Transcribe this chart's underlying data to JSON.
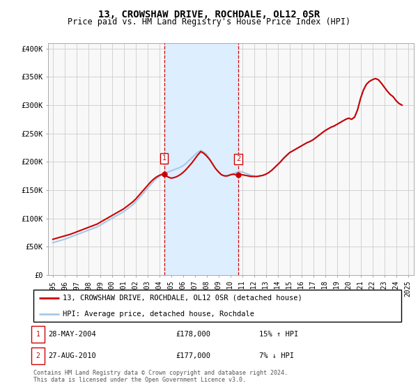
{
  "title": "13, CROWSHAW DRIVE, ROCHDALE, OL12 0SR",
  "subtitle": "Price paid vs. HM Land Registry's House Price Index (HPI)",
  "legend_line1": "13, CROWSHAW DRIVE, ROCHDALE, OL12 0SR (detached house)",
  "legend_line2": "HPI: Average price, detached house, Rochdale",
  "footnote": "Contains HM Land Registry data © Crown copyright and database right 2024.\nThis data is licensed under the Open Government Licence v3.0.",
  "transaction1_date": "28-MAY-2004",
  "transaction1_price": "£178,000",
  "transaction1_hpi": "15% ↑ HPI",
  "transaction2_date": "27-AUG-2010",
  "transaction2_price": "£177,000",
  "transaction2_hpi": "7% ↓ HPI",
  "transaction1_x": 2004.42,
  "transaction2_x": 2010.67,
  "transaction1_y": 178000,
  "transaction2_y": 177000,
  "ylim": [
    0,
    410000
  ],
  "xlim_start": 1994.6,
  "xlim_end": 2025.5,
  "yticks": [
    0,
    50000,
    100000,
    150000,
    200000,
    250000,
    300000,
    350000,
    400000
  ],
  "ytick_labels": [
    "£0",
    "£50K",
    "£100K",
    "£150K",
    "£200K",
    "£250K",
    "£300K",
    "£350K",
    "£400K"
  ],
  "xticks": [
    1995,
    1996,
    1997,
    1998,
    1999,
    2000,
    2001,
    2002,
    2003,
    2004,
    2005,
    2006,
    2007,
    2008,
    2009,
    2010,
    2011,
    2012,
    2013,
    2014,
    2015,
    2016,
    2017,
    2018,
    2019,
    2020,
    2021,
    2022,
    2023,
    2024,
    2025
  ],
  "hpi_color": "#a8c8e8",
  "price_color": "#cc0000",
  "shaded_color": "#ddeeff",
  "marker_box_color": "#cc0000",
  "grid_color": "#cccccc",
  "bg_color": "#f8f8f8",
  "hpi_data_x": [
    1995.0,
    1995.25,
    1995.5,
    1995.75,
    1996.0,
    1996.25,
    1996.5,
    1996.75,
    1997.0,
    1997.25,
    1997.5,
    1997.75,
    1998.0,
    1998.25,
    1998.5,
    1998.75,
    1999.0,
    1999.25,
    1999.5,
    1999.75,
    2000.0,
    2000.25,
    2000.5,
    2000.75,
    2001.0,
    2001.25,
    2001.5,
    2001.75,
    2002.0,
    2002.25,
    2002.5,
    2002.75,
    2003.0,
    2003.25,
    2003.5,
    2003.75,
    2004.0,
    2004.25,
    2004.5,
    2004.75,
    2005.0,
    2005.25,
    2005.5,
    2005.75,
    2006.0,
    2006.25,
    2006.5,
    2006.75,
    2007.0,
    2007.25,
    2007.5,
    2007.75,
    2008.0,
    2008.25,
    2008.5,
    2008.75,
    2009.0,
    2009.25,
    2009.5,
    2009.75,
    2010.0,
    2010.25,
    2010.5,
    2010.75,
    2011.0,
    2011.25,
    2011.5,
    2011.75,
    2012.0,
    2012.25,
    2012.5,
    2012.75,
    2013.0,
    2013.25,
    2013.5,
    2013.75,
    2014.0,
    2014.25,
    2014.5,
    2014.75,
    2015.0,
    2015.25,
    2015.5,
    2015.75,
    2016.0,
    2016.25,
    2016.5,
    2016.75,
    2017.0,
    2017.25,
    2017.5,
    2017.75,
    2018.0,
    2018.25,
    2018.5,
    2018.75,
    2019.0,
    2019.25,
    2019.5,
    2019.75,
    2020.0,
    2020.25,
    2020.5,
    2020.75,
    2021.0,
    2021.25,
    2021.5,
    2021.75,
    2022.0,
    2022.25,
    2022.5,
    2022.75,
    2023.0,
    2023.25,
    2023.5,
    2023.75,
    2024.0,
    2024.25,
    2024.5
  ],
  "hpi_data_y": [
    57000,
    58500,
    60000,
    61500,
    63000,
    65000,
    67000,
    69000,
    71000,
    73000,
    75000,
    77000,
    79000,
    81000,
    83000,
    85000,
    88000,
    91000,
    94000,
    97000,
    100000,
    103000,
    106000,
    109000,
    112000,
    116000,
    120000,
    124000,
    129000,
    135000,
    141000,
    147000,
    153000,
    159000,
    165000,
    170000,
    174000,
    177000,
    180000,
    182000,
    184000,
    186000,
    188000,
    190000,
    193000,
    197000,
    202000,
    207000,
    212000,
    217000,
    220000,
    217000,
    213000,
    205000,
    196000,
    188000,
    182000,
    177000,
    175000,
    175000,
    177000,
    179000,
    181000,
    183000,
    182000,
    180000,
    178000,
    176000,
    175000,
    174000,
    175000,
    176000,
    178000,
    181000,
    185000,
    190000,
    195000,
    201000,
    207000,
    212000,
    216000,
    219000,
    222000,
    225000,
    228000,
    231000,
    234000,
    236000,
    239000,
    243000,
    247000,
    251000,
    255000,
    258000,
    261000,
    263000,
    266000,
    269000,
    272000,
    275000,
    277000,
    275000,
    279000,
    292000,
    312000,
    327000,
    337000,
    342000,
    345000,
    347000,
    345000,
    339000,
    332000,
    325000,
    319000,
    315000,
    308000,
    303000,
    300000
  ],
  "price_data_x": [
    1995.0,
    1995.25,
    1995.5,
    1995.75,
    1996.0,
    1996.25,
    1996.5,
    1996.75,
    1997.0,
    1997.25,
    1997.5,
    1997.75,
    1998.0,
    1998.25,
    1998.5,
    1998.75,
    1999.0,
    1999.25,
    1999.5,
    1999.75,
    2000.0,
    2000.25,
    2000.5,
    2000.75,
    2001.0,
    2001.25,
    2001.5,
    2001.75,
    2002.0,
    2002.25,
    2002.5,
    2002.75,
    2003.0,
    2003.25,
    2003.5,
    2003.75,
    2004.0,
    2004.25,
    2004.5,
    2004.75,
    2005.0,
    2005.25,
    2005.5,
    2005.75,
    2006.0,
    2006.25,
    2006.5,
    2006.75,
    2007.0,
    2007.25,
    2007.5,
    2007.75,
    2008.0,
    2008.25,
    2008.5,
    2008.75,
    2009.0,
    2009.25,
    2009.5,
    2009.75,
    2010.0,
    2010.25,
    2010.5,
    2010.75,
    2011.0,
    2011.25,
    2011.5,
    2011.75,
    2012.0,
    2012.25,
    2012.5,
    2012.75,
    2013.0,
    2013.25,
    2013.5,
    2013.75,
    2014.0,
    2014.25,
    2014.5,
    2014.75,
    2015.0,
    2015.25,
    2015.5,
    2015.75,
    2016.0,
    2016.25,
    2016.5,
    2016.75,
    2017.0,
    2017.25,
    2017.5,
    2017.75,
    2018.0,
    2018.25,
    2018.5,
    2018.75,
    2019.0,
    2019.25,
    2019.5,
    2019.75,
    2020.0,
    2020.25,
    2020.5,
    2020.75,
    2021.0,
    2021.25,
    2021.5,
    2021.75,
    2022.0,
    2022.25,
    2022.5,
    2022.75,
    2023.0,
    2023.25,
    2023.5,
    2023.75,
    2024.0,
    2024.25,
    2024.5
  ],
  "price_data_y": [
    63000,
    64500,
    66000,
    67500,
    69000,
    70500,
    72000,
    74000,
    76000,
    78000,
    80000,
    82000,
    84000,
    86000,
    88000,
    90000,
    93000,
    96000,
    99000,
    102000,
    105000,
    108000,
    111000,
    114000,
    117000,
    121000,
    125000,
    129000,
    134000,
    140000,
    146000,
    152000,
    158000,
    164000,
    169000,
    173000,
    176000,
    178000,
    176000,
    173000,
    171000,
    172000,
    174000,
    177000,
    181000,
    186000,
    192000,
    198000,
    205000,
    212000,
    218000,
    215000,
    210000,
    204000,
    196000,
    188000,
    182000,
    177000,
    175000,
    175000,
    177000,
    178000,
    177000,
    178000,
    177000,
    176000,
    175000,
    174000,
    174000,
    174000,
    175000,
    176000,
    178000,
    181000,
    185000,
    190000,
    195000,
    200000,
    206000,
    211000,
    216000,
    219000,
    222000,
    225000,
    228000,
    231000,
    234000,
    236000,
    239000,
    243000,
    247000,
    251000,
    255000,
    258000,
    261000,
    263000,
    266000,
    269000,
    272000,
    275000,
    277000,
    275000,
    279000,
    292000,
    312000,
    327000,
    337000,
    342000,
    345000,
    347000,
    345000,
    339000,
    332000,
    325000,
    319000,
    315000,
    308000,
    303000,
    300000
  ]
}
